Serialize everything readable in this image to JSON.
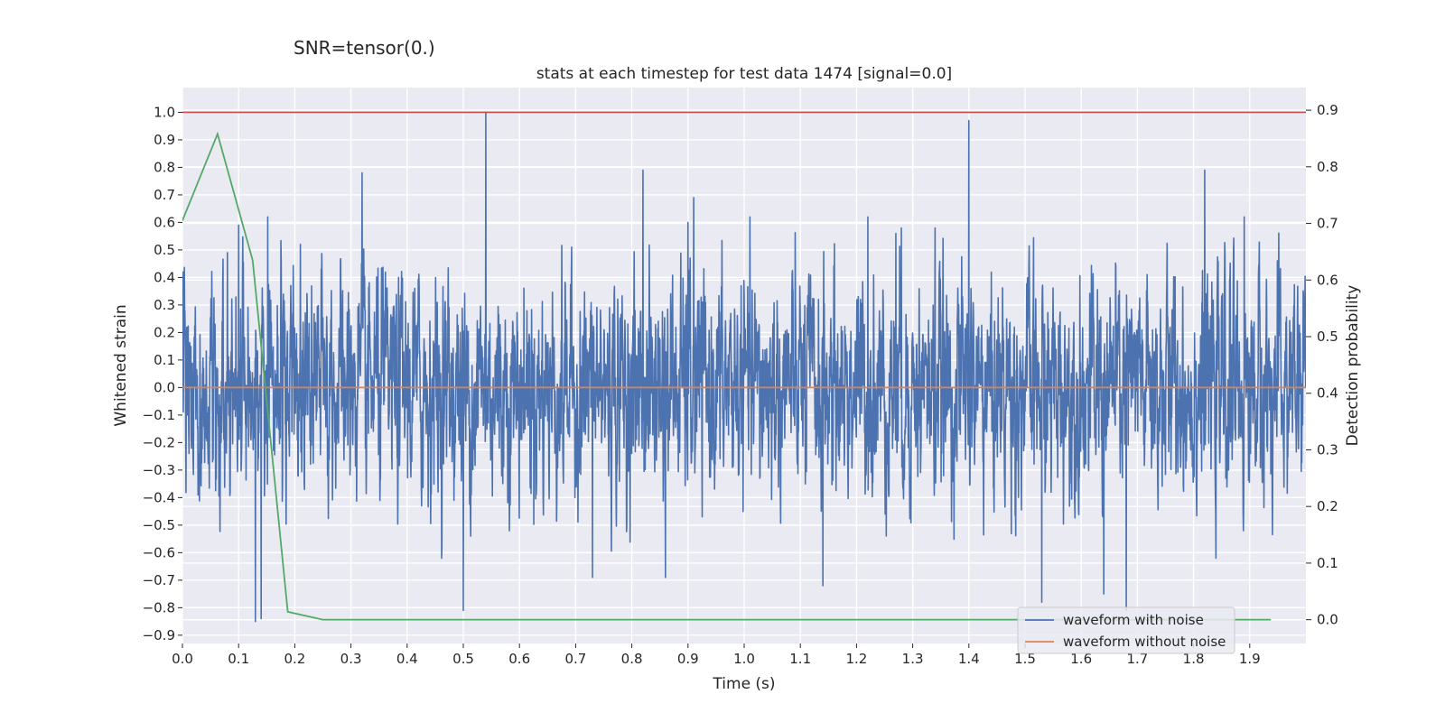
{
  "suptitle": "SNR=tensor(0.)",
  "chart_data": {
    "type": "line",
    "title": "stats at each timestep for test data 1474 [signal=0.0]",
    "xlabel": "Time (s)",
    "ylabel": "Whitened strain",
    "y2label": "Detection probability",
    "xlim": [
      0.0,
      2.0
    ],
    "ylim": [
      -0.93,
      1.09
    ],
    "y2lim": [
      -0.042,
      0.94
    ],
    "xticks": [
      0.0,
      0.1,
      0.2,
      0.3,
      0.4,
      0.5,
      0.6,
      0.7,
      0.8,
      0.9,
      1.0,
      1.1,
      1.2,
      1.3,
      1.4,
      1.5,
      1.6,
      1.7,
      1.8,
      1.9
    ],
    "xtick_labels": [
      "0.0",
      "0.1",
      "0.2",
      "0.3",
      "0.4",
      "0.5",
      "0.6",
      "0.7",
      "0.8",
      "0.9",
      "1.0",
      "1.1",
      "1.2",
      "1.3",
      "1.4",
      "1.5",
      "1.6",
      "1.7",
      "1.8",
      "1.9"
    ],
    "yticks": [
      -0.9,
      -0.8,
      -0.7,
      -0.6,
      -0.5,
      -0.4,
      -0.3,
      -0.2,
      -0.1,
      0.0,
      0.1,
      0.2,
      0.3,
      0.4,
      0.5,
      0.6,
      0.7,
      0.8,
      0.9,
      1.0
    ],
    "ytick_labels": [
      "−0.9",
      "−0.8",
      "−0.7",
      "−0.6",
      "−0.5",
      "−0.4",
      "−0.3",
      "−0.2",
      "−0.1",
      "0.0",
      "0.1",
      "0.2",
      "0.3",
      "0.4",
      "0.5",
      "0.6",
      "0.7",
      "0.8",
      "0.9",
      "1.0"
    ],
    "y2ticks": [
      0.0,
      0.1,
      0.2,
      0.3,
      0.4,
      0.5,
      0.6,
      0.7,
      0.8,
      0.9
    ],
    "y2tick_labels": [
      "0.0",
      "0.1",
      "0.2",
      "0.3",
      "0.4",
      "0.5",
      "0.6",
      "0.7",
      "0.8",
      "0.9"
    ],
    "threshold": {
      "value": 1.0,
      "color": "#c44e52"
    },
    "series": [
      {
        "name": "waveform with noise",
        "color": "#4c72b0",
        "sample_rate": 2048,
        "duration": 2.0,
        "amplitude_sd": 0.19,
        "peaks": [
          {
            "t": 0.001,
            "v": 0.42
          },
          {
            "t": 0.08,
            "v": 0.49
          },
          {
            "t": 0.1,
            "v": 0.59
          },
          {
            "t": 0.13,
            "v": -0.85
          },
          {
            "t": 0.14,
            "v": -0.84
          },
          {
            "t": 0.152,
            "v": 0.62
          },
          {
            "t": 0.21,
            "v": 0.52
          },
          {
            "t": 0.32,
            "v": 0.78
          },
          {
            "t": 0.5,
            "v": -0.81
          },
          {
            "t": 0.54,
            "v": 1.0
          },
          {
            "t": 0.73,
            "v": -0.69
          },
          {
            "t": 0.82,
            "v": 0.79
          },
          {
            "t": 0.86,
            "v": -0.69
          },
          {
            "t": 0.9,
            "v": 0.6
          },
          {
            "t": 0.91,
            "v": 0.69
          },
          {
            "t": 1.14,
            "v": -0.72
          },
          {
            "t": 1.22,
            "v": 0.62
          },
          {
            "t": 1.27,
            "v": 0.56
          },
          {
            "t": 1.4,
            "v": 0.97
          },
          {
            "t": 1.53,
            "v": -0.78
          },
          {
            "t": 1.64,
            "v": -0.75
          },
          {
            "t": 1.68,
            "v": -0.81
          },
          {
            "t": 1.82,
            "v": 0.79
          },
          {
            "t": 1.89,
            "v": 0.62
          },
          {
            "t": 1.34,
            "v": 0.58
          },
          {
            "t": 1.28,
            "v": 0.58
          }
        ]
      },
      {
        "name": "waveform without noise",
        "color": "#dd8452",
        "y": [
          0.0,
          0.0
        ]
      },
      {
        "name": "detection probability",
        "axis": "right",
        "color": "#55a868",
        "x": [
          0.0,
          0.0625,
          0.125,
          0.1875,
          0.25,
          0.3125,
          0.5,
          1.0,
          1.5,
          1.9375
        ],
        "values": [
          0.705,
          0.858,
          0.635,
          0.014,
          0.0,
          0.0,
          0.0,
          0.0,
          0.0,
          0.0
        ]
      }
    ],
    "legend": {
      "location": "lower-right",
      "entries": [
        "waveform with noise",
        "waveform without noise"
      ]
    }
  }
}
